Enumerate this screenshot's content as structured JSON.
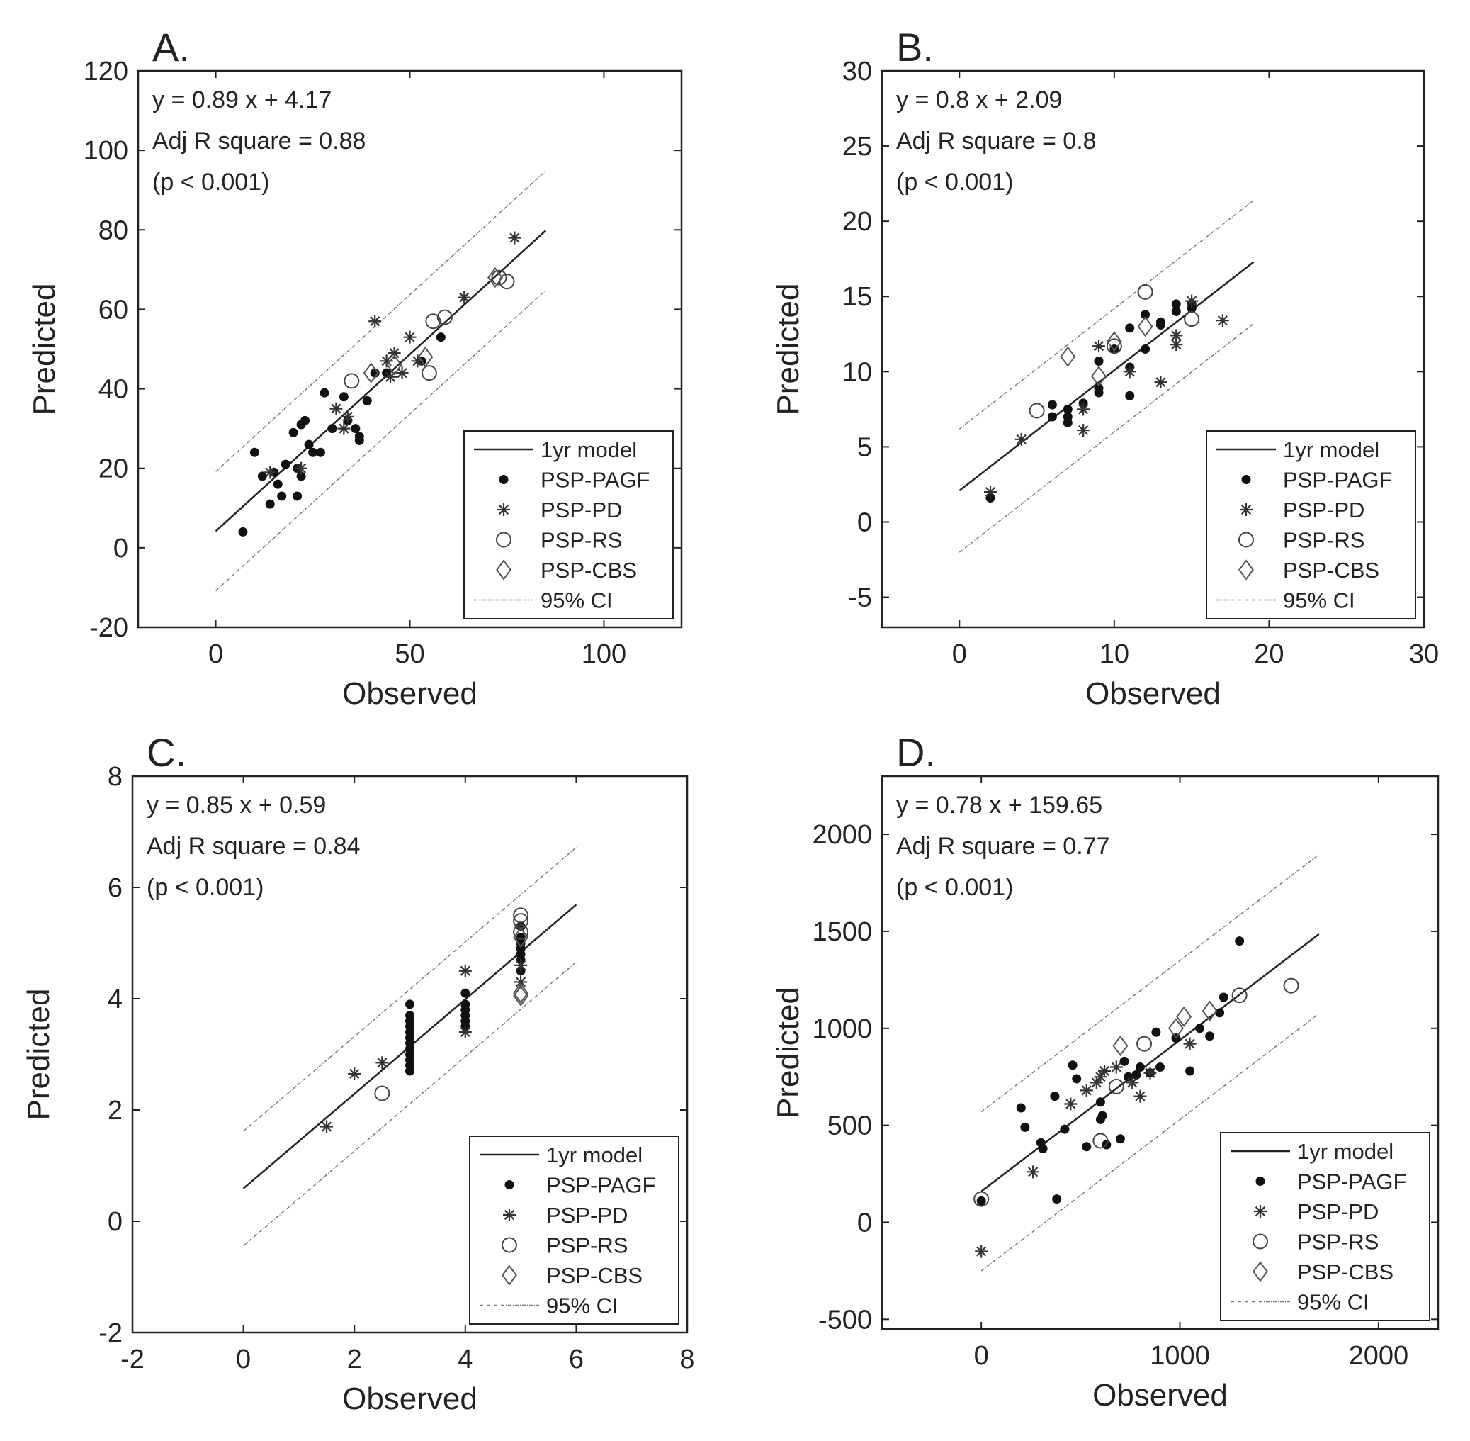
{
  "chart_data": [
    {
      "type": "scatter",
      "panel_label": "A.",
      "xlabel": "Observed",
      "ylabel": "Predicted",
      "xlim": [
        -20,
        120
      ],
      "ylim": [
        -20,
        120
      ],
      "xticks": [
        0,
        50,
        100
      ],
      "yticks": [
        -20,
        0,
        20,
        40,
        60,
        80,
        100,
        120
      ],
      "grid": false,
      "annotations": [
        "y = 0.89 x + 4.17",
        "Adj R square = 0.88",
        "(p < 0.001)"
      ],
      "fit": {
        "slope": 0.89,
        "intercept": 4.17,
        "x_range": [
          0,
          85
        ]
      },
      "ci_offset": 15,
      "legend_position": "bottom-right",
      "legend": [
        "1yr model",
        "PSP-PAGF",
        "PSP-PD",
        "PSP-RS",
        "PSP-CBS",
        "95% CI"
      ],
      "series": [
        {
          "name": "PSP-PAGF",
          "marker": "dot",
          "points": [
            [
              7,
              4
            ],
            [
              10,
              24
            ],
            [
              12,
              18
            ],
            [
              14,
              11
            ],
            [
              16,
              16
            ],
            [
              17,
              13
            ],
            [
              18,
              21
            ],
            [
              20,
              29
            ],
            [
              21,
              13
            ],
            [
              22,
              18
            ],
            [
              22,
              31
            ],
            [
              23,
              32
            ],
            [
              24,
              26
            ],
            [
              25,
              24
            ],
            [
              27,
              24
            ],
            [
              28,
              39
            ],
            [
              30,
              30
            ],
            [
              33,
              38
            ],
            [
              34,
              32
            ],
            [
              36,
              30
            ],
            [
              37,
              28
            ],
            [
              37,
              27
            ],
            [
              39,
              37
            ],
            [
              41,
              44
            ],
            [
              44,
              44
            ],
            [
              53,
              47
            ],
            [
              58,
              53
            ],
            [
              21,
              20
            ],
            [
              15,
              19
            ]
          ]
        },
        {
          "name": "PSP-PD",
          "marker": "star",
          "points": [
            [
              14,
              19
            ],
            [
              22,
              20
            ],
            [
              31,
              35
            ],
            [
              34,
              33
            ],
            [
              41,
              57
            ],
            [
              44,
              47
            ],
            [
              45,
              43
            ],
            [
              46,
              49
            ],
            [
              50,
              53
            ],
            [
              52,
              47
            ],
            [
              64,
              63
            ],
            [
              77,
              78
            ],
            [
              48,
              44
            ],
            [
              33,
              30
            ]
          ]
        },
        {
          "name": "PSP-RS",
          "marker": "circle",
          "points": [
            [
              35,
              42
            ],
            [
              55,
              44
            ],
            [
              56,
              57
            ],
            [
              59,
              58
            ],
            [
              75,
              67
            ],
            [
              73,
              68
            ]
          ]
        },
        {
          "name": "PSP-CBS",
          "marker": "diamond",
          "points": [
            [
              40,
              44
            ],
            [
              46,
              46
            ],
            [
              54,
              48
            ],
            [
              72,
              68
            ]
          ]
        }
      ]
    },
    {
      "type": "scatter",
      "panel_label": "B.",
      "xlabel": "Observed",
      "ylabel": "Predicted",
      "xlim": [
        -5,
        30
      ],
      "ylim": [
        -7,
        30
      ],
      "xticks": [
        0,
        10,
        20,
        30
      ],
      "yticks": [
        -5,
        0,
        5,
        10,
        15,
        20,
        25,
        30
      ],
      "grid": false,
      "annotations": [
        "y = 0.8 x + 2.09",
        "Adj R square = 0.8",
        "(p < 0.001)"
      ],
      "fit": {
        "slope": 0.8,
        "intercept": 2.09,
        "x_range": [
          0,
          19
        ]
      },
      "ci_offset": 4.1,
      "legend_position": "bottom-right",
      "legend": [
        "1yr model",
        "PSP-PAGF",
        "PSP-PD",
        "PSP-RS",
        "PSP-CBS",
        "95% CI"
      ],
      "series": [
        {
          "name": "PSP-PAGF",
          "marker": "dot",
          "points": [
            [
              2,
              1.6
            ],
            [
              6,
              7.8
            ],
            [
              7,
              7.5
            ],
            [
              7,
              7
            ],
            [
              7,
              6.6
            ],
            [
              8,
              7.9
            ],
            [
              9,
              8.6
            ],
            [
              9,
              10.7
            ],
            [
              10,
              11.5
            ],
            [
              11,
              12.9
            ],
            [
              11,
              8.4
            ],
            [
              11,
              10.3
            ],
            [
              12,
              11.5
            ],
            [
              12,
              13.8
            ],
            [
              13,
              13.1
            ],
            [
              13,
              13.3
            ],
            [
              14,
              14
            ],
            [
              14,
              14.5
            ],
            [
              15,
              14.5
            ],
            [
              15,
              14.2
            ],
            [
              9,
              8.9
            ],
            [
              6,
              7
            ]
          ]
        },
        {
          "name": "PSP-PD",
          "marker": "star",
          "points": [
            [
              2,
              2
            ],
            [
              4,
              5.5
            ],
            [
              8,
              6.1
            ],
            [
              8,
              7.5
            ],
            [
              9,
              11.7
            ],
            [
              11,
              10
            ],
            [
              13,
              9.3
            ],
            [
              14,
              11.8
            ],
            [
              14,
              12.4
            ],
            [
              15,
              14.7
            ],
            [
              17,
              13.4
            ]
          ]
        },
        {
          "name": "PSP-RS",
          "marker": "circle",
          "points": [
            [
              5,
              7.4
            ],
            [
              12,
              15.3
            ],
            [
              15,
              13.5
            ],
            [
              10,
              11.7
            ]
          ]
        },
        {
          "name": "PSP-CBS",
          "marker": "diamond",
          "points": [
            [
              7,
              11
            ],
            [
              9,
              9.7
            ],
            [
              10,
              12
            ],
            [
              12,
              13
            ]
          ]
        }
      ]
    },
    {
      "type": "scatter",
      "panel_label": "C.",
      "xlabel": "Observed",
      "ylabel": "Predicted",
      "xlim": [
        -2,
        8
      ],
      "ylim": [
        -2,
        8
      ],
      "xticks": [
        -2,
        0,
        2,
        4,
        6,
        8
      ],
      "yticks": [
        -2,
        0,
        2,
        4,
        6,
        8
      ],
      "grid": false,
      "annotations": [
        "y = 0.85 x + 0.59",
        "Adj R square = 0.84",
        "(p < 0.001)"
      ],
      "fit": {
        "slope": 0.85,
        "intercept": 0.59,
        "x_range": [
          0,
          6
        ]
      },
      "ci_offset": 1.03,
      "legend_position": "bottom-right",
      "legend": [
        "1yr model",
        "PSP-PAGF",
        "PSP-PD",
        "PSP-RS",
        "PSP-CBS",
        "95% CI"
      ],
      "series": [
        {
          "name": "PSP-PAGF",
          "marker": "dot",
          "points": [
            [
              3,
              2.7
            ],
            [
              3,
              2.8
            ],
            [
              3,
              2.9
            ],
            [
              3,
              3.0
            ],
            [
              3,
              3.1
            ],
            [
              3,
              3.2
            ],
            [
              3,
              3.3
            ],
            [
              3,
              3.4
            ],
            [
              3,
              3.5
            ],
            [
              3,
              3.6
            ],
            [
              3,
              3.7
            ],
            [
              3,
              3.9
            ],
            [
              4,
              3.5
            ],
            [
              4,
              3.6
            ],
            [
              4,
              3.7
            ],
            [
              4,
              3.8
            ],
            [
              4,
              3.9
            ],
            [
              4,
              4.1
            ],
            [
              5,
              4.5
            ],
            [
              5,
              4.7
            ],
            [
              5,
              4.8
            ],
            [
              5,
              4.9
            ],
            [
              5,
              5.0
            ],
            [
              5,
              5.1
            ],
            [
              5,
              5.3
            ]
          ]
        },
        {
          "name": "PSP-PD",
          "marker": "star",
          "points": [
            [
              1.5,
              1.7
            ],
            [
              2,
              2.65
            ],
            [
              2.5,
              2.85
            ],
            [
              4,
              4.5
            ],
            [
              5,
              4.3
            ],
            [
              5,
              4.6
            ],
            [
              4,
              3.4
            ]
          ]
        },
        {
          "name": "PSP-RS",
          "marker": "circle",
          "points": [
            [
              2.5,
              2.3
            ],
            [
              5,
              5.4
            ],
            [
              5,
              5.2
            ],
            [
              5,
              5.5
            ]
          ]
        },
        {
          "name": "PSP-CBS",
          "marker": "diamond",
          "points": [
            [
              5,
              4.1
            ],
            [
              5,
              4.05
            ],
            [
              5,
              5.1
            ]
          ]
        }
      ]
    },
    {
      "type": "scatter",
      "panel_label": "D.",
      "xlabel": "Observed",
      "ylabel": "Predicted",
      "xlim": [
        -500,
        2300
      ],
      "ylim": [
        -550,
        2300
      ],
      "xticks": [
        0,
        1000,
        2000
      ],
      "yticks": [
        -500,
        0,
        500,
        1000,
        1500,
        2000
      ],
      "grid": false,
      "annotations": [
        "y = 0.78 x + 159.65",
        "Adj R square = 0.77",
        "(p < 0.001)"
      ],
      "fit": {
        "slope": 0.78,
        "intercept": 159.65,
        "x_range": [
          0,
          1700
        ]
      },
      "ci_offset": 410,
      "legend_position": "bottom-right",
      "legend": [
        "1yr model",
        "PSP-PAGF",
        "PSP-PD",
        "PSP-RS",
        "PSP-CBS",
        "95% CI"
      ],
      "series": [
        {
          "name": "PSP-PAGF",
          "marker": "dot",
          "points": [
            [
              0,
              110
            ],
            [
              200,
              590
            ],
            [
              220,
              490
            ],
            [
              300,
              410
            ],
            [
              310,
              380
            ],
            [
              370,
              650
            ],
            [
              380,
              120
            ],
            [
              420,
              480
            ],
            [
              460,
              810
            ],
            [
              480,
              740
            ],
            [
              530,
              390
            ],
            [
              600,
              620
            ],
            [
              600,
              530
            ],
            [
              610,
              550
            ],
            [
              630,
              400
            ],
            [
              700,
              430
            ],
            [
              720,
              830
            ],
            [
              740,
              750
            ],
            [
              780,
              760
            ],
            [
              800,
              800
            ],
            [
              850,
              770
            ],
            [
              880,
              980
            ],
            [
              900,
              800
            ],
            [
              980,
              950
            ],
            [
              1050,
              780
            ],
            [
              1100,
              1000
            ],
            [
              1150,
              960
            ],
            [
              1200,
              1080
            ],
            [
              1220,
              1160
            ],
            [
              1300,
              1450
            ]
          ]
        },
        {
          "name": "PSP-PD",
          "marker": "star",
          "points": [
            [
              0,
              -150
            ],
            [
              260,
              260
            ],
            [
              450,
              610
            ],
            [
              530,
              680
            ],
            [
              580,
              720
            ],
            [
              600,
              750
            ],
            [
              620,
              780
            ],
            [
              680,
              800
            ],
            [
              760,
              720
            ],
            [
              800,
              650
            ],
            [
              850,
              770
            ],
            [
              1050,
              920
            ]
          ]
        },
        {
          "name": "PSP-RS",
          "marker": "circle",
          "points": [
            [
              0,
              120
            ],
            [
              600,
              420
            ],
            [
              680,
              700
            ],
            [
              820,
              920
            ],
            [
              1300,
              1170
            ],
            [
              1560,
              1220
            ]
          ]
        },
        {
          "name": "PSP-CBS",
          "marker": "diamond",
          "points": [
            [
              700,
              910
            ],
            [
              980,
              1000
            ],
            [
              1020,
              1060
            ],
            [
              1150,
              1090
            ]
          ]
        }
      ]
    }
  ]
}
